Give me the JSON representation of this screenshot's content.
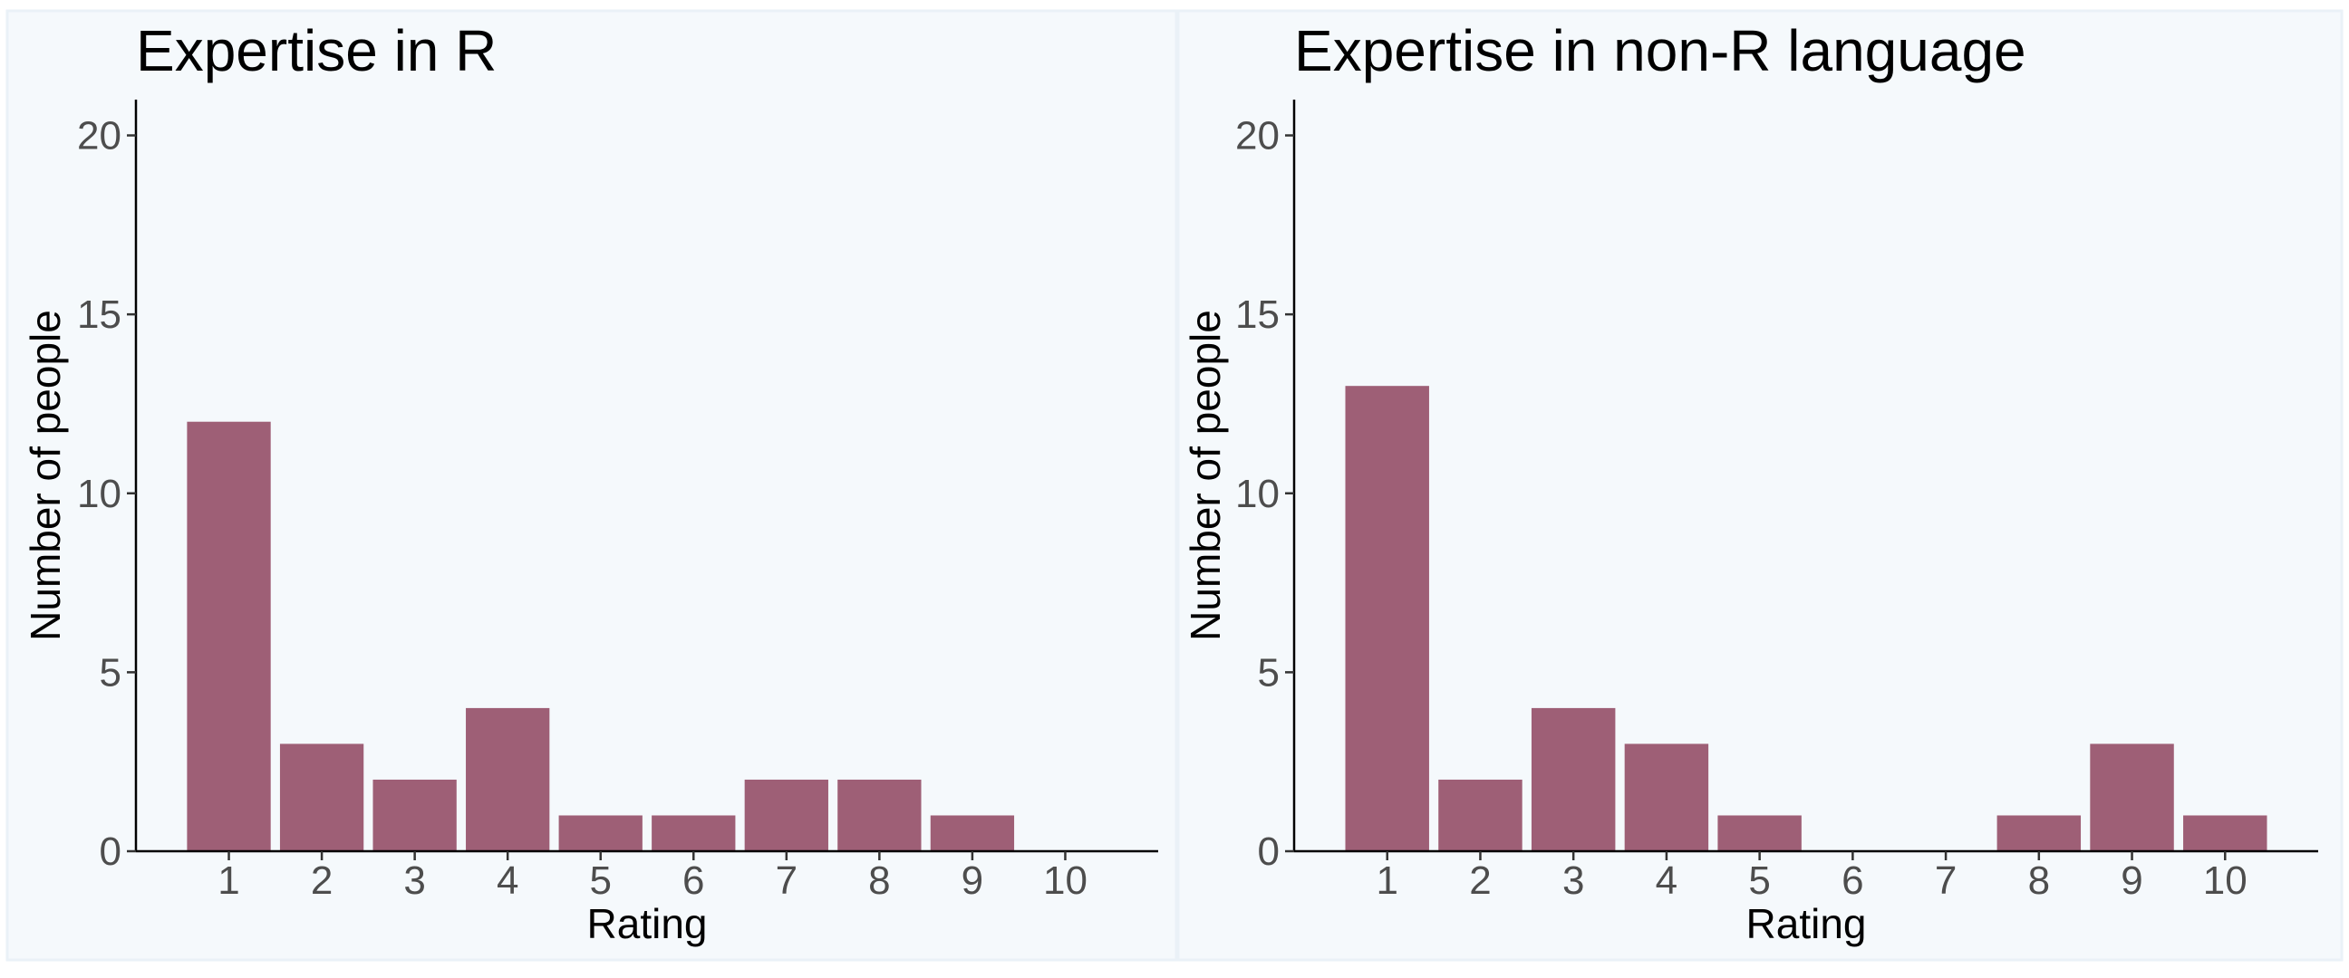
{
  "colors": {
    "bar": "#9e5f76",
    "panel_background": "#f5f9fc",
    "panel_border": "#eaf1f7",
    "outer_background": "#ffffff"
  },
  "chart_data": [
    {
      "type": "bar",
      "title": "Expertise in R",
      "xlabel": "Rating",
      "ylabel": "Number of people",
      "categories": [
        "1",
        "2",
        "3",
        "4",
        "5",
        "6",
        "7",
        "8",
        "9",
        "10"
      ],
      "values": [
        12,
        3,
        2,
        4,
        1,
        1,
        2,
        2,
        1,
        0
      ],
      "ylim": [
        0,
        21
      ],
      "yticks": [
        "0",
        "5",
        "10",
        "15",
        "20"
      ],
      "grid": false
    },
    {
      "type": "bar",
      "title": "Expertise in non-R language",
      "xlabel": "Rating",
      "ylabel": "Number of people",
      "categories": [
        "1",
        "2",
        "3",
        "4",
        "5",
        "6",
        "7",
        "8",
        "9",
        "10"
      ],
      "values": [
        13,
        2,
        4,
        3,
        1,
        0,
        0,
        1,
        3,
        1
      ],
      "ylim": [
        0,
        21
      ],
      "yticks": [
        "0",
        "5",
        "10",
        "15",
        "20"
      ],
      "grid": false
    }
  ]
}
